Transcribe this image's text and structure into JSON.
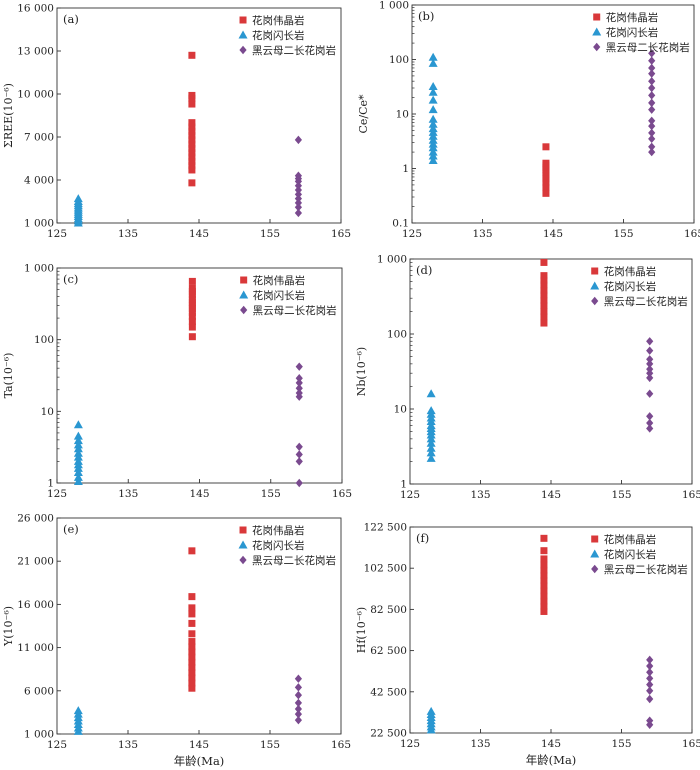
{
  "series_styles": [
    {
      "color": "#d9383a",
      "marker": "square"
    },
    {
      "color": "#2a97d1",
      "marker": "triangle"
    },
    {
      "color": "#7a4a8f",
      "marker": "diamond"
    }
  ],
  "chart_data": [
    {
      "type": "scatter",
      "panel_label": "(a)",
      "ylabel": "ΣREE(10⁻⁶)",
      "xlabel": "",
      "xlim": [
        125,
        165
      ],
      "ylim": [
        1000,
        16000
      ],
      "x_ticks": [
        125,
        135,
        145,
        155,
        165
      ],
      "y_ticks": [
        1000,
        4000,
        7000,
        10000,
        13000,
        16000
      ],
      "y_tick_labels": [
        "1 000",
        "4 000",
        "7 000",
        "10 000",
        "13 000",
        "16 000"
      ],
      "log_y": false,
      "legend_position": "top-right",
      "series": [
        {
          "name": "花岗伟晶岩",
          "x": 144,
          "values": [
            3800,
            4700,
            5000,
            5300,
            5600,
            5900,
            6200,
            6500,
            6800,
            7100,
            7400,
            7700,
            8000,
            9300,
            9700,
            9900,
            12700
          ]
        },
        {
          "name": "花岗闪长岩",
          "x": 128,
          "values": [
            1000,
            1150,
            1300,
            1450,
            1600,
            1750,
            1900,
            2050,
            2200,
            2350,
            2500,
            2700
          ]
        },
        {
          "name": "黑云母二长花岗岩",
          "x": 159,
          "values": [
            1700,
            2100,
            2400,
            2700,
            3000,
            3300,
            3600,
            3900,
            4100,
            4300,
            6800
          ]
        }
      ]
    },
    {
      "type": "scatter",
      "panel_label": "(b)",
      "ylabel": "Ce/Ce*",
      "xlabel": "",
      "xlim": [
        125,
        165
      ],
      "ylim": [
        0.1,
        1000
      ],
      "x_ticks": [
        125,
        135,
        145,
        155,
        165
      ],
      "y_ticks": [
        0.1,
        1,
        10,
        100,
        1000
      ],
      "y_tick_labels": [
        "0.1",
        "1",
        "10",
        "100",
        "1 000"
      ],
      "log_y": true,
      "legend_position": "top-right",
      "series": [
        {
          "name": "花岗伟晶岩",
          "x": 144,
          "values": [
            0.35,
            0.45,
            0.55,
            0.65,
            0.75,
            0.85,
            0.95,
            1.05,
            1.15,
            1.25,
            2.5
          ]
        },
        {
          "name": "花岗闪长岩",
          "x": 128,
          "values": [
            1.4,
            1.7,
            2.0,
            2.4,
            2.8,
            3.3,
            3.9,
            4.6,
            5.4,
            6.5,
            8.0,
            12,
            18,
            25,
            32,
            85,
            110
          ]
        },
        {
          "name": "黑云母二长花岗岩",
          "x": 159,
          "values": [
            2.0,
            2.5,
            3.5,
            4.5,
            6.0,
            7.5,
            12,
            16,
            22,
            30,
            40,
            55,
            70,
            95,
            130
          ]
        }
      ]
    },
    {
      "type": "scatter",
      "panel_label": "(c)",
      "ylabel": "Ta(10⁻⁶)",
      "xlabel": "",
      "xlim": [
        125,
        165
      ],
      "ylim": [
        1,
        1000
      ],
      "x_ticks": [
        125,
        135,
        145,
        155,
        165
      ],
      "y_ticks": [
        1,
        10,
        100,
        1000
      ],
      "y_tick_labels": [
        "1",
        "10",
        "100",
        "1 000"
      ],
      "log_y": true,
      "legend_position": "top-right",
      "series": [
        {
          "name": "花岗伟晶岩",
          "x": 144,
          "values": [
            110,
            150,
            180,
            210,
            240,
            270,
            300,
            330,
            370,
            420,
            470,
            520,
            650
          ]
        },
        {
          "name": "花岗闪长岩",
          "x": 128,
          "values": [
            1.05,
            1.2,
            1.4,
            1.6,
            1.8,
            2.0,
            2.3,
            2.6,
            3.0,
            3.4,
            3.9,
            4.5,
            6.5
          ]
        },
        {
          "name": "黑云母二长花岗岩",
          "x": 159,
          "values": [
            1.0,
            2.0,
            2.5,
            3.2,
            16,
            18,
            21,
            25,
            29,
            42
          ]
        }
      ]
    },
    {
      "type": "scatter",
      "panel_label": "(d)",
      "ylabel": "Nb(10⁻⁶)",
      "xlabel": "",
      "xlim": [
        125,
        165
      ],
      "ylim": [
        1,
        1000
      ],
      "x_ticks": [
        125,
        135,
        145,
        155,
        165
      ],
      "y_ticks": [
        1,
        10,
        100,
        1000
      ],
      "y_tick_labels": [
        "1",
        "10",
        "100",
        "1 000"
      ],
      "log_y": true,
      "legend_position": "top-right",
      "series": [
        {
          "name": "花岗伟晶岩",
          "x": 144,
          "values": [
            140,
            170,
            200,
            240,
            280,
            330,
            380,
            450,
            520,
            600,
            900
          ]
        },
        {
          "name": "花岗闪长岩",
          "x": 128,
          "values": [
            2.2,
            2.6,
            3.0,
            3.5,
            4.0,
            4.5,
            5.0,
            5.5,
            6.0,
            6.8,
            7.6,
            8.5,
            9.5,
            16
          ]
        },
        {
          "name": "黑云母二长花岗岩",
          "x": 159,
          "values": [
            5.5,
            6.5,
            8.0,
            16,
            26,
            30,
            34,
            40,
            46,
            60,
            80
          ]
        }
      ]
    },
    {
      "type": "scatter",
      "panel_label": "(e)",
      "ylabel": "Y(10⁻⁶)",
      "xlabel": "年龄(Ma)",
      "xlim": [
        125,
        165
      ],
      "ylim": [
        1000,
        26000
      ],
      "x_ticks": [
        125,
        135,
        145,
        155,
        165
      ],
      "y_ticks": [
        1000,
        6000,
        11000,
        16000,
        21000,
        26000
      ],
      "y_tick_labels": [
        "1 000",
        "6 000",
        "11 000",
        "16 000",
        "21 000",
        "26 000"
      ],
      "log_y": false,
      "legend_position": "top-right",
      "series": [
        {
          "name": "花岗伟晶岩",
          "x": 144,
          "values": [
            6300,
            6900,
            7500,
            8100,
            8700,
            9300,
            9900,
            10500,
            11100,
            11700,
            12600,
            13800,
            14900,
            15600,
            16900,
            22200
          ]
        },
        {
          "name": "花岗闪长岩",
          "x": 128,
          "values": [
            1300,
            1700,
            2100,
            2500,
            2900,
            3300,
            3700
          ]
        },
        {
          "name": "黑云母二长花岗岩",
          "x": 159,
          "values": [
            2600,
            3300,
            3900,
            4600,
            5500,
            6400,
            7400
          ]
        }
      ]
    },
    {
      "type": "scatter",
      "panel_label": "(f)",
      "ylabel": "Hf(10⁻⁶)",
      "xlabel": "年龄(Ma)",
      "xlim": [
        125,
        165
      ],
      "ylim": [
        22500,
        122500
      ],
      "x_ticks": [
        125,
        135,
        145,
        155,
        165
      ],
      "y_ticks": [
        22500,
        42500,
        62500,
        82500,
        102500,
        122500
      ],
      "y_tick_labels": [
        "22 500",
        "42 500",
        "62 500",
        "82 500",
        "102 500",
        "122 500"
      ],
      "log_y": false,
      "legend_position": "top-right",
      "series": [
        {
          "name": "花岗伟晶岩",
          "x": 144,
          "values": [
            81500,
            84000,
            86500,
            89000,
            91500,
            94000,
            96500,
            99000,
            101500,
            104000,
            107000,
            111000,
            117000
          ]
        },
        {
          "name": "花岗闪长岩",
          "x": 128,
          "values": [
            24000,
            25500,
            27000,
            28500,
            30000,
            31500,
            33000
          ]
        },
        {
          "name": "黑云母二长花岗岩",
          "x": 159,
          "values": [
            26500,
            28500,
            39000,
            43000,
            46000,
            49000,
            52000,
            55000,
            58000
          ]
        }
      ]
    }
  ]
}
